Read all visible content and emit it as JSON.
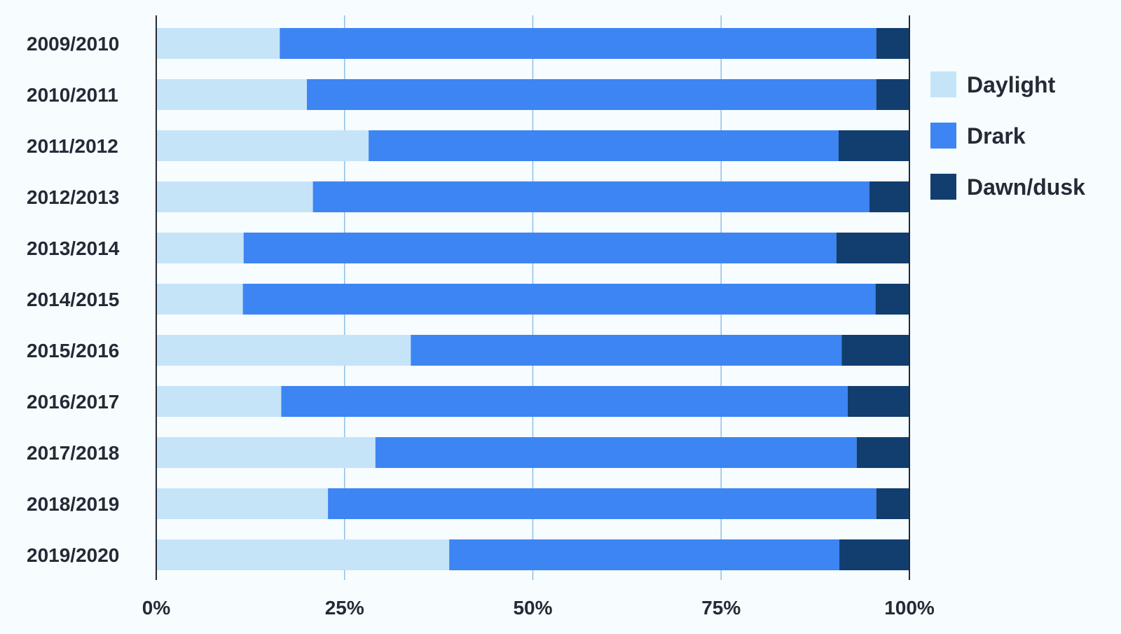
{
  "chart_data": {
    "type": "bar",
    "orientation": "horizontal",
    "stacked": true,
    "percent": true,
    "categories": [
      "2009/2010",
      "2010/2011",
      "2011/2012",
      "2012/2013",
      "2013/2014",
      "2014/2015",
      "2015/2016",
      "2016/2017",
      "2017/2018",
      "2018/2019",
      "2019/2020"
    ],
    "series": [
      {
        "name": "Daylight",
        "color": "#c6e4f8",
        "values": [
          16.4,
          20.0,
          28.2,
          20.8,
          11.6,
          11.5,
          33.8,
          16.6,
          29.1,
          22.8,
          38.9
        ]
      },
      {
        "name": "Drark",
        "color": "#3d85f3",
        "values": [
          79.2,
          75.6,
          62.4,
          73.9,
          78.7,
          84.0,
          57.2,
          75.2,
          63.9,
          72.8,
          51.8
        ]
      },
      {
        "name": "Dawn/dusk",
        "color": "#113e6f",
        "values": [
          4.4,
          4.4,
          9.4,
          5.3,
          9.7,
          4.5,
          9.0,
          8.2,
          7.0,
          4.4,
          9.3
        ]
      }
    ],
    "xlim": [
      0,
      100
    ],
    "x_ticks": [
      "0%",
      "25%",
      "50%",
      "75%",
      "100%"
    ],
    "x_tick_values": [
      0,
      25,
      50,
      75,
      100
    ],
    "grid": true,
    "grid_color": "#8fbfe6",
    "axis_color": "#222b36",
    "background": "#f7fcff",
    "legend_position": "right"
  }
}
